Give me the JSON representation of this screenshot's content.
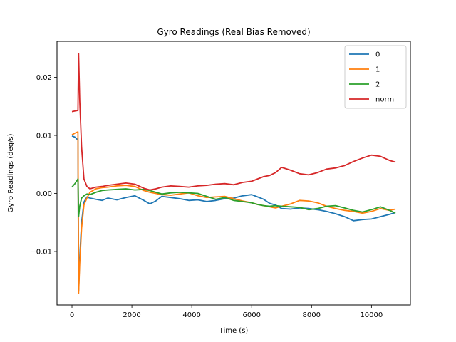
{
  "chart_data": {
    "type": "line",
    "title": "Gyro Readings (Real Bias Removed)",
    "xlabel": "Time (s)",
    "ylabel": "Gyro Readings (deg/s)",
    "xlim": [
      -500,
      11300
    ],
    "ylim": [
      -0.0192,
      0.0262
    ],
    "xticks": [
      0,
      2000,
      4000,
      6000,
      8000,
      10000
    ],
    "xtick_labels": [
      "0",
      "2000",
      "4000",
      "6000",
      "8000",
      "10000"
    ],
    "yticks": [
      -0.01,
      0.0,
      0.01,
      0.02
    ],
    "ytick_labels": [
      "−0.01",
      "0.00",
      "0.01",
      "0.02"
    ],
    "grid": false,
    "legend_position": "top-right",
    "series": [
      {
        "name": "0",
        "color": "#1f77b4",
        "x": [
          0,
          100,
          200,
          220,
          260,
          320,
          400,
          500,
          600,
          800,
          1000,
          1200,
          1500,
          1800,
          2100,
          2400,
          2600,
          2800,
          3000,
          3300,
          3600,
          3900,
          4200,
          4500,
          4800,
          5100,
          5400,
          5700,
          6000,
          6200,
          6400,
          6600,
          6800,
          7000,
          7300,
          7600,
          7900,
          8200,
          8500,
          8800,
          9100,
          9400,
          9700,
          10000,
          10300,
          10600,
          10800
        ],
        "y": [
          0.0099,
          0.0097,
          0.0092,
          -0.0168,
          -0.011,
          -0.005,
          -0.0015,
          -0.0006,
          -0.0008,
          -0.001,
          -0.0012,
          -0.0008,
          -0.0011,
          -0.0007,
          -0.0004,
          -0.0012,
          -0.0018,
          -0.0013,
          -0.0005,
          -0.0007,
          -0.0009,
          -0.0012,
          -0.0011,
          -0.0014,
          -0.0012,
          -0.0009,
          -0.0008,
          -0.0004,
          -0.0002,
          -0.0006,
          -0.001,
          -0.0017,
          -0.002,
          -0.0026,
          -0.0027,
          -0.0025,
          -0.0026,
          -0.0028,
          -0.0031,
          -0.0035,
          -0.004,
          -0.0047,
          -0.0045,
          -0.0044,
          -0.004,
          -0.0036,
          -0.0033
        ]
      },
      {
        "name": "1",
        "color": "#ff7f0e",
        "x": [
          0,
          100,
          200,
          220,
          260,
          320,
          400,
          500,
          600,
          800,
          1000,
          1200,
          1500,
          1800,
          2100,
          2400,
          2600,
          2800,
          3000,
          3300,
          3600,
          3900,
          4200,
          4500,
          4800,
          5100,
          5400,
          5700,
          6000,
          6200,
          6400,
          6600,
          6800,
          7000,
          7300,
          7600,
          7900,
          8200,
          8500,
          8800,
          9100,
          9400,
          9700,
          10000,
          10300,
          10600,
          10800
        ],
        "y": [
          0.0101,
          0.0104,
          0.0106,
          -0.0172,
          -0.012,
          -0.006,
          -0.002,
          -0.0008,
          0.0002,
          0.0008,
          0.001,
          0.0011,
          0.0013,
          0.0014,
          0.0012,
          0.0005,
          0.0002,
          0.0,
          -0.0002,
          -0.0003,
          -0.0001,
          0.0001,
          -0.0004,
          -0.0007,
          -0.0006,
          -0.0005,
          -0.0009,
          -0.0013,
          -0.0016,
          -0.0019,
          -0.0021,
          -0.0023,
          -0.0025,
          -0.0022,
          -0.0018,
          -0.0012,
          -0.0013,
          -0.0016,
          -0.0022,
          -0.0026,
          -0.0029,
          -0.0031,
          -0.0034,
          -0.0031,
          -0.0026,
          -0.0029,
          -0.0027
        ]
      },
      {
        "name": "2",
        "color": "#2ca02c",
        "x": [
          0,
          100,
          200,
          220,
          260,
          320,
          400,
          500,
          600,
          800,
          1000,
          1200,
          1500,
          1800,
          2100,
          2400,
          2600,
          2800,
          3000,
          3300,
          3600,
          3900,
          4200,
          4500,
          4800,
          5100,
          5400,
          5700,
          6000,
          6200,
          6400,
          6600,
          6800,
          7000,
          7300,
          7600,
          7900,
          8200,
          8500,
          8800,
          9100,
          9400,
          9700,
          10000,
          10300,
          10600,
          10800
        ],
        "y": [
          0.0011,
          0.0017,
          0.0025,
          -0.004,
          -0.0022,
          -0.0008,
          -0.0004,
          -0.0001,
          -0.0002,
          0.0002,
          0.0005,
          0.0006,
          0.0007,
          0.0008,
          0.0006,
          0.0007,
          0.0005,
          0.0002,
          -0.0001,
          0.0001,
          0.0002,
          0.0001,
          0.0,
          -0.0005,
          -0.001,
          -0.0007,
          -0.0012,
          -0.0014,
          -0.0016,
          -0.0019,
          -0.0021,
          -0.0022,
          -0.0021,
          -0.0022,
          -0.0023,
          -0.0024,
          -0.0028,
          -0.0026,
          -0.0022,
          -0.0021,
          -0.0025,
          -0.0029,
          -0.0032,
          -0.0028,
          -0.0023,
          -0.0029,
          -0.0034
        ]
      },
      {
        "name": "norm",
        "color": "#d62728",
        "x": [
          0,
          100,
          200,
          220,
          260,
          320,
          400,
          500,
          600,
          800,
          1000,
          1200,
          1500,
          1800,
          2100,
          2400,
          2600,
          2800,
          3000,
          3300,
          3600,
          3900,
          4200,
          4500,
          4800,
          5100,
          5400,
          5700,
          6000,
          6200,
          6400,
          6600,
          6800,
          7000,
          7300,
          7600,
          7900,
          8200,
          8500,
          8800,
          9100,
          9400,
          9700,
          10000,
          10300,
          10600,
          10800
        ],
        "y": [
          0.0141,
          0.0142,
          0.0143,
          0.0241,
          0.016,
          0.008,
          0.0025,
          0.0012,
          0.0008,
          0.0011,
          0.0012,
          0.0014,
          0.0016,
          0.0018,
          0.0016,
          0.0009,
          0.0006,
          0.0008,
          0.0011,
          0.0013,
          0.0012,
          0.0011,
          0.0013,
          0.0014,
          0.0016,
          0.0017,
          0.0015,
          0.0019,
          0.0021,
          0.0025,
          0.0029,
          0.0031,
          0.0036,
          0.0045,
          0.004,
          0.0034,
          0.0032,
          0.0036,
          0.0042,
          0.0044,
          0.0048,
          0.0055,
          0.0061,
          0.0066,
          0.0064,
          0.0057,
          0.0054
        ]
      }
    ]
  }
}
